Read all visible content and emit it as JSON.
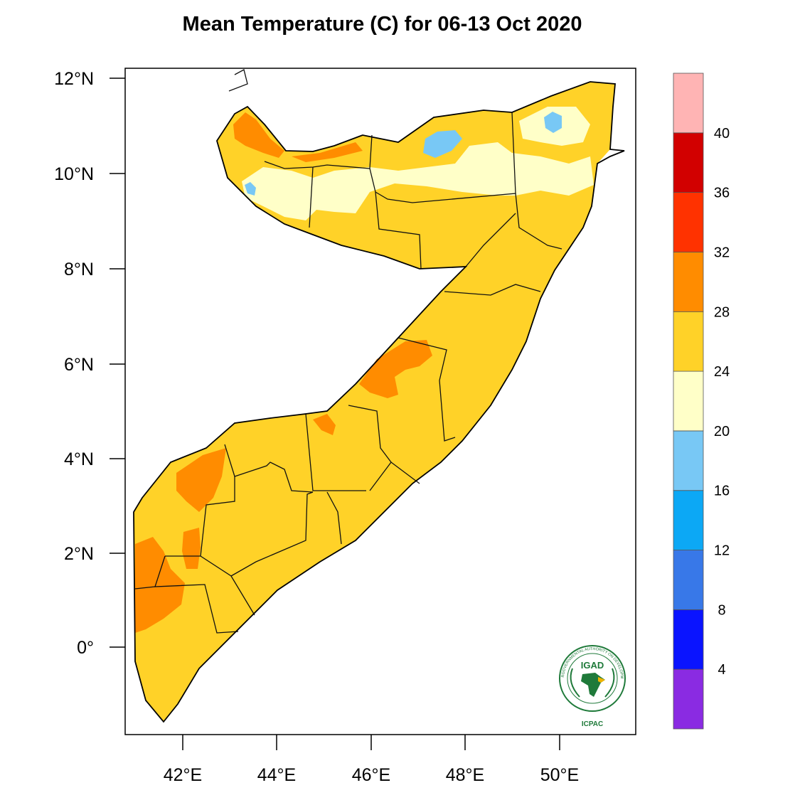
{
  "title": "Mean Temperature (C) for 06-13 Oct 2020",
  "y_ticks": [
    "12°N",
    "10°N",
    "8°N",
    "6°N",
    "4°N",
    "2°N",
    "0°"
  ],
  "x_ticks": [
    "42°E",
    "44°E",
    "46°E",
    "48°E",
    "50°E"
  ],
  "legend": {
    "labels": [
      "4",
      "8",
      "12",
      "16",
      "20",
      "24",
      "28",
      "32",
      "36",
      "40"
    ],
    "colors": [
      "#8a2be2",
      "#0a14ff",
      "#3878e8",
      "#0ca8f5",
      "#78c8f5",
      "#ffffc8",
      "#ffd228",
      "#ff8c00",
      "#ff3200",
      "#d20000",
      "#ffb4b4"
    ]
  },
  "logo": {
    "name": "IGAD",
    "caption": "ICPAC",
    "ring_text": "INTERGOVERNMENTAL AUTHORITY ON DEVELOPMENT",
    "color": "#1f7a3a"
  },
  "colors": {
    "bin_20_24": "#ffffc8",
    "bin_24_28": "#ffd228",
    "bin_28_32": "#ff8c00",
    "bin_16_20": "#78c8f5"
  }
}
